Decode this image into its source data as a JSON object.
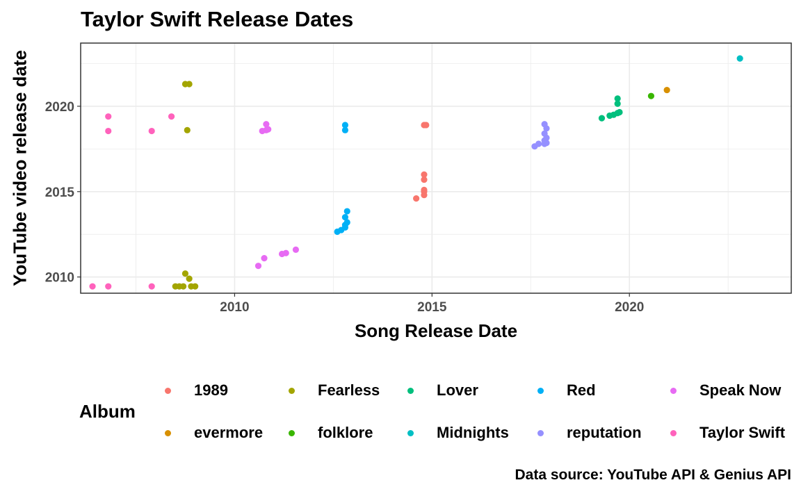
{
  "chart_data": {
    "type": "scatter",
    "title": "Taylor Swift Release Dates",
    "xlabel": "Song Release Date",
    "ylabel": "YouTube video release date",
    "xlim": [
      2006.1,
      2024.1
    ],
    "ylim": [
      2009.05,
      2023.7
    ],
    "x_ticks": [
      2010,
      2015,
      2020
    ],
    "y_ticks": [
      2010,
      2015,
      2020
    ],
    "grid": true,
    "legend_title": "Album",
    "legend_position": "bottom",
    "caption": "Data source: YouTube API & Genius API",
    "series": [
      {
        "name": "1989",
        "color": "#F8766D",
        "points": [
          [
            2014.6,
            2014.6
          ],
          [
            2014.8,
            2014.8
          ],
          [
            2014.8,
            2015.0
          ],
          [
            2014.8,
            2015.1
          ],
          [
            2014.8,
            2015.7
          ],
          [
            2014.8,
            2016.0
          ],
          [
            2014.8,
            2018.9
          ],
          [
            2014.85,
            2018.9
          ]
        ]
      },
      {
        "name": "evermore",
        "color": "#D89000",
        "points": [
          [
            2020.95,
            2020.95
          ]
        ]
      },
      {
        "name": "Fearless",
        "color": "#A3A500",
        "points": [
          [
            2008.5,
            2009.45
          ],
          [
            2008.6,
            2009.45
          ],
          [
            2008.7,
            2009.45
          ],
          [
            2008.9,
            2009.45
          ],
          [
            2009.0,
            2009.45
          ],
          [
            2008.75,
            2010.2
          ],
          [
            2008.85,
            2009.9
          ],
          [
            2008.8,
            2018.6
          ],
          [
            2008.75,
            2021.3
          ],
          [
            2008.85,
            2021.3
          ]
        ]
      },
      {
        "name": "folklore",
        "color": "#39B600",
        "points": [
          [
            2020.55,
            2020.6
          ]
        ]
      },
      {
        "name": "Lover",
        "color": "#00BF7D",
        "points": [
          [
            2019.3,
            2019.3
          ],
          [
            2019.5,
            2019.45
          ],
          [
            2019.6,
            2019.5
          ],
          [
            2019.7,
            2019.6
          ],
          [
            2019.75,
            2019.65
          ],
          [
            2019.7,
            2020.15
          ],
          [
            2019.7,
            2020.45
          ]
        ]
      },
      {
        "name": "Midnights",
        "color": "#00BFC4",
        "points": [
          [
            2022.8,
            2022.8
          ]
        ]
      },
      {
        "name": "Red",
        "color": "#00B0F6",
        "points": [
          [
            2012.6,
            2012.65
          ],
          [
            2012.7,
            2012.75
          ],
          [
            2012.8,
            2012.9
          ],
          [
            2012.8,
            2013.05
          ],
          [
            2012.85,
            2013.2
          ],
          [
            2012.8,
            2013.5
          ],
          [
            2012.85,
            2013.85
          ],
          [
            2012.8,
            2018.6
          ],
          [
            2012.8,
            2018.9
          ]
        ]
      },
      {
        "name": "reputation",
        "color": "#9590FF",
        "points": [
          [
            2017.6,
            2017.65
          ],
          [
            2017.7,
            2017.8
          ],
          [
            2017.85,
            2017.8
          ],
          [
            2017.9,
            2017.85
          ],
          [
            2017.85,
            2018.0
          ],
          [
            2017.9,
            2018.15
          ],
          [
            2017.85,
            2018.4
          ],
          [
            2017.9,
            2018.7
          ],
          [
            2017.85,
            2018.95
          ]
        ]
      },
      {
        "name": "Speak Now",
        "color": "#E76BF3",
        "points": [
          [
            2010.6,
            2010.65
          ],
          [
            2010.75,
            2011.1
          ],
          [
            2011.2,
            2011.35
          ],
          [
            2011.3,
            2011.4
          ],
          [
            2011.55,
            2011.6
          ],
          [
            2010.7,
            2018.55
          ],
          [
            2010.8,
            2018.6
          ],
          [
            2010.85,
            2018.65
          ],
          [
            2010.8,
            2018.95
          ]
        ]
      },
      {
        "name": "Taylor Swift",
        "color": "#FF62BC",
        "points": [
          [
            2006.4,
            2009.45
          ],
          [
            2006.8,
            2009.45
          ],
          [
            2007.9,
            2009.45
          ],
          [
            2006.8,
            2018.55
          ],
          [
            2007.9,
            2018.55
          ],
          [
            2006.8,
            2019.4
          ],
          [
            2008.4,
            2019.4
          ]
        ]
      }
    ]
  }
}
